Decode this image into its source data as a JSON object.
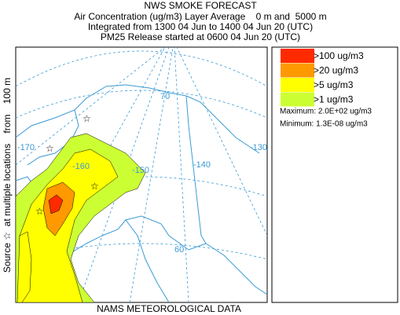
{
  "header": {
    "title": "NWS SMOKE FORECAST",
    "lines": [
      "Air Concentration (ug/m3) Layer Average    0 m and  5000 m",
      "Integrated from 1300 04 Jun to 1400 04 Jun 20 (UTC)",
      "PM25 Release started at 0600 04 Jun 20 (UTC)"
    ]
  },
  "source_label": "Source ☆  at multiple locations    from    100 m",
  "legend": {
    "items": [
      {
        "label": ">100 ug/m3",
        "color": "#ff2a00"
      },
      {
        "label": ">20 ug/m3",
        "color": "#ff9900"
      },
      {
        "label": ">5 ug/m3",
        "color": "#ffff00"
      },
      {
        "label": ">1 ug/m3",
        "color": "#ccff33"
      }
    ],
    "maximum": "Maximum: 2.0E+02 ug/m3",
    "minimum": "Minimum: 1.3E-08 ug/m3"
  },
  "map": {
    "grid_labels": [
      "-170",
      "-160",
      "-150",
      "-140",
      "-130",
      "70",
      "60"
    ]
  },
  "footer": "NAMS METEOROLOGICAL DATA"
}
